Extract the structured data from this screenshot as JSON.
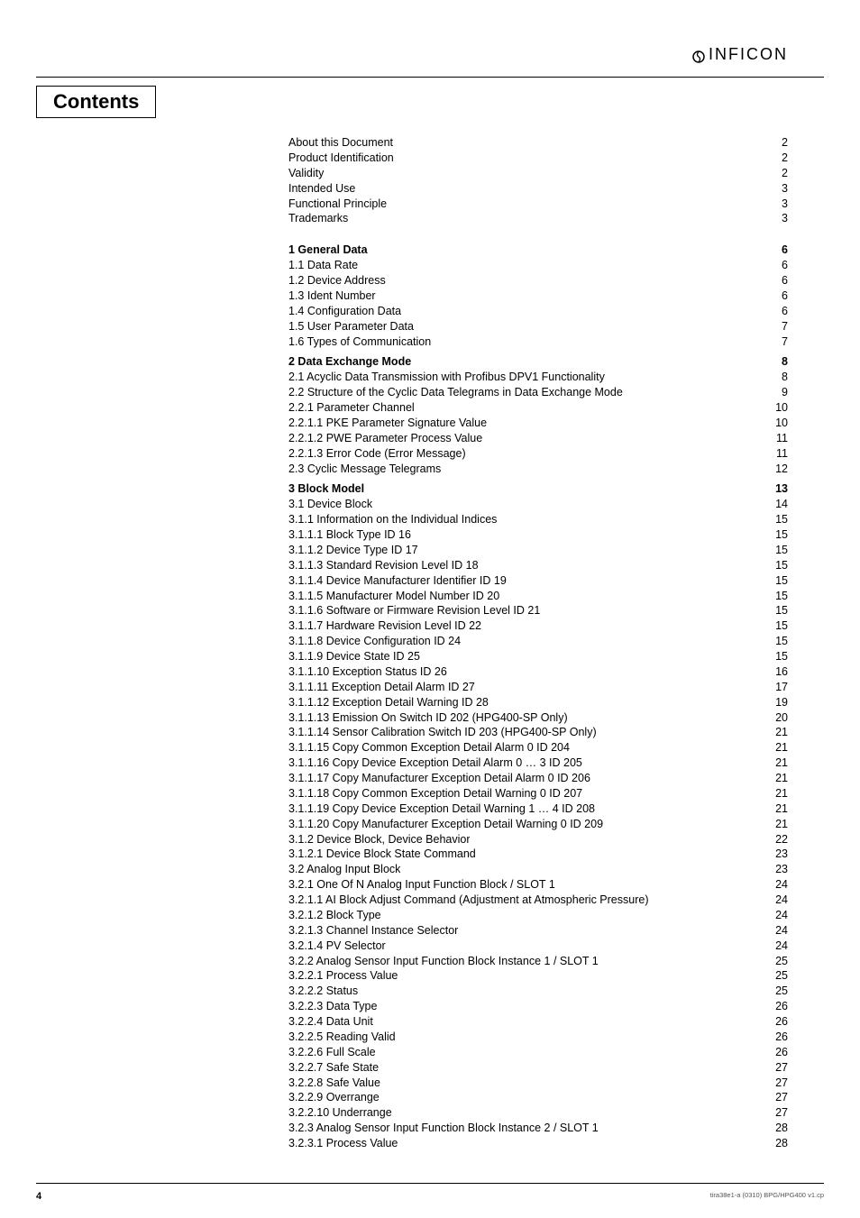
{
  "logo": {
    "text": "INFICON"
  },
  "heading": "Contents",
  "toc_front": [
    {
      "label": "About this Document",
      "page": "2"
    },
    {
      "label": "Product Identification",
      "page": "2"
    },
    {
      "label": "Validity",
      "page": "2"
    },
    {
      "label": "Intended Use",
      "page": "3"
    },
    {
      "label": "Functional Principle",
      "page": "3"
    },
    {
      "label": "Trademarks",
      "page": "3"
    }
  ],
  "sections": [
    {
      "head": {
        "label": "1   General Data",
        "page": "6"
      },
      "items": [
        {
          "label": "1.1   Data Rate",
          "page": "6"
        },
        {
          "label": "1.2   Device Address",
          "page": "6"
        },
        {
          "label": "1.3   Ident Number",
          "page": "6"
        },
        {
          "label": "1.4   Configuration Data",
          "page": "6"
        },
        {
          "label": "1.5   User Parameter Data",
          "page": "7"
        },
        {
          "label": "1.6   Types of Communication",
          "page": "7"
        }
      ]
    },
    {
      "head": {
        "label": "2   Data Exchange Mode",
        "page": "8"
      },
      "items": [
        {
          "label": "2.1   Acyclic Data Transmission with Profibus DPV1 Functionality",
          "page": "8"
        },
        {
          "label": "2.2   Structure of the Cyclic Data Telegrams in Data Exchange Mode",
          "page": "9"
        },
        {
          "label": "2.2.1   Parameter Channel",
          "page": "10"
        },
        {
          "label": "2.2.1.1   PKE Parameter Signature Value",
          "page": "10"
        },
        {
          "label": "2.2.1.2   PWE Parameter Process Value",
          "page": "11"
        },
        {
          "label": "2.2.1.3   Error Code (Error Message)",
          "page": "11"
        },
        {
          "label": "2.3   Cyclic Message Telegrams",
          "page": "12"
        }
      ]
    },
    {
      "head": {
        "label": "3   Block Model",
        "page": "13"
      },
      "items": [
        {
          "label": "3.1   Device Block",
          "page": "14"
        },
        {
          "label": "3.1.1   Information on the Individual Indices",
          "page": "15"
        },
        {
          "label": "3.1.1.1   Block Type ID 16",
          "page": "15"
        },
        {
          "label": "3.1.1.2   Device Type ID 17",
          "page": "15"
        },
        {
          "label": "3.1.1.3   Standard Revision Level ID 18",
          "page": "15"
        },
        {
          "label": "3.1.1.4   Device Manufacturer Identifier ID 19",
          "page": "15"
        },
        {
          "label": "3.1.1.5   Manufacturer Model Number ID 20",
          "page": "15"
        },
        {
          "label": "3.1.1.6   Software or Firmware Revision Level ID 21",
          "page": "15"
        },
        {
          "label": "3.1.1.7   Hardware Revision Level ID 22",
          "page": "15"
        },
        {
          "label": "3.1.1.8   Device Configuration ID 24",
          "page": "15"
        },
        {
          "label": "3.1.1.9   Device State ID 25",
          "page": "15"
        },
        {
          "label": "3.1.1.10   Exception Status ID 26",
          "page": "16"
        },
        {
          "label": "3.1.1.11   Exception Detail Alarm ID 27",
          "page": "17"
        },
        {
          "label": "3.1.1.12   Exception Detail Warning ID 28",
          "page": "19"
        },
        {
          "label": "3.1.1.13   Emission On Switch ID 202 (HPG400-SP Only)",
          "page": "20"
        },
        {
          "label": "3.1.1.14   Sensor Calibration Switch ID 203 (HPG400-SP Only)",
          "page": "21"
        },
        {
          "label": "3.1.1.15   Copy Common Exception Detail Alarm 0 ID 204",
          "page": "21"
        },
        {
          "label": "3.1.1.16   Copy Device Exception Detail Alarm 0 … 3 ID 205",
          "page": "21"
        },
        {
          "label": "3.1.1.17   Copy Manufacturer Exception Detail Alarm 0 ID 206",
          "page": "21"
        },
        {
          "label": "3.1.1.18   Copy Common Exception Detail Warning 0 ID 207",
          "page": "21"
        },
        {
          "label": "3.1.1.19   Copy Device Exception Detail Warning 1 … 4 ID 208",
          "page": "21"
        },
        {
          "label": "3.1.1.20   Copy Manufacturer Exception Detail Warning 0 ID 209",
          "page": "21"
        },
        {
          "label": "3.1.2   Device Block, Device Behavior",
          "page": "22"
        },
        {
          "label": "3.1.2.1   Device Block State Command",
          "page": "23"
        },
        {
          "label": "3.2   Analog Input Block",
          "page": "23"
        },
        {
          "label": "3.2.1   One Of N Analog Input Function Block / SLOT 1",
          "page": "24"
        },
        {
          "label": "3.2.1.1   AI Block Adjust Command (Adjustment at Atmospheric Pressure)",
          "page": "24"
        },
        {
          "label": "3.2.1.2   Block Type",
          "page": "24"
        },
        {
          "label": "3.2.1.3   Channel Instance Selector",
          "page": "24"
        },
        {
          "label": "3.2.1.4   PV Selector",
          "page": "24"
        },
        {
          "label": "3.2.2   Analog Sensor Input Function Block Instance 1 / SLOT 1",
          "page": "25"
        },
        {
          "label": "3.2.2.1   Process Value",
          "page": "25"
        },
        {
          "label": "3.2.2.2   Status",
          "page": "25"
        },
        {
          "label": "3.2.2.3   Data Type",
          "page": "26"
        },
        {
          "label": "3.2.2.4   Data Unit",
          "page": "26"
        },
        {
          "label": "3.2.2.5   Reading Valid",
          "page": "26"
        },
        {
          "label": "3.2.2.6   Full Scale",
          "page": "26"
        },
        {
          "label": "3.2.2.7   Safe State",
          "page": "27"
        },
        {
          "label": "3.2.2.8   Safe Value",
          "page": "27"
        },
        {
          "label": "3.2.2.9   Overrange",
          "page": "27"
        },
        {
          "label": "3.2.2.10 Underrange",
          "page": "27"
        },
        {
          "label": "3.2.3   Analog Sensor Input Function Block Instance 2 / SLOT 1",
          "page": "28"
        },
        {
          "label": "3.2.3.1   Process Value",
          "page": "28"
        }
      ]
    }
  ],
  "footer": {
    "page_number": "4",
    "doc_code": "tira38e1-a   (0310)   BPG/HPG400 v1.cp"
  }
}
